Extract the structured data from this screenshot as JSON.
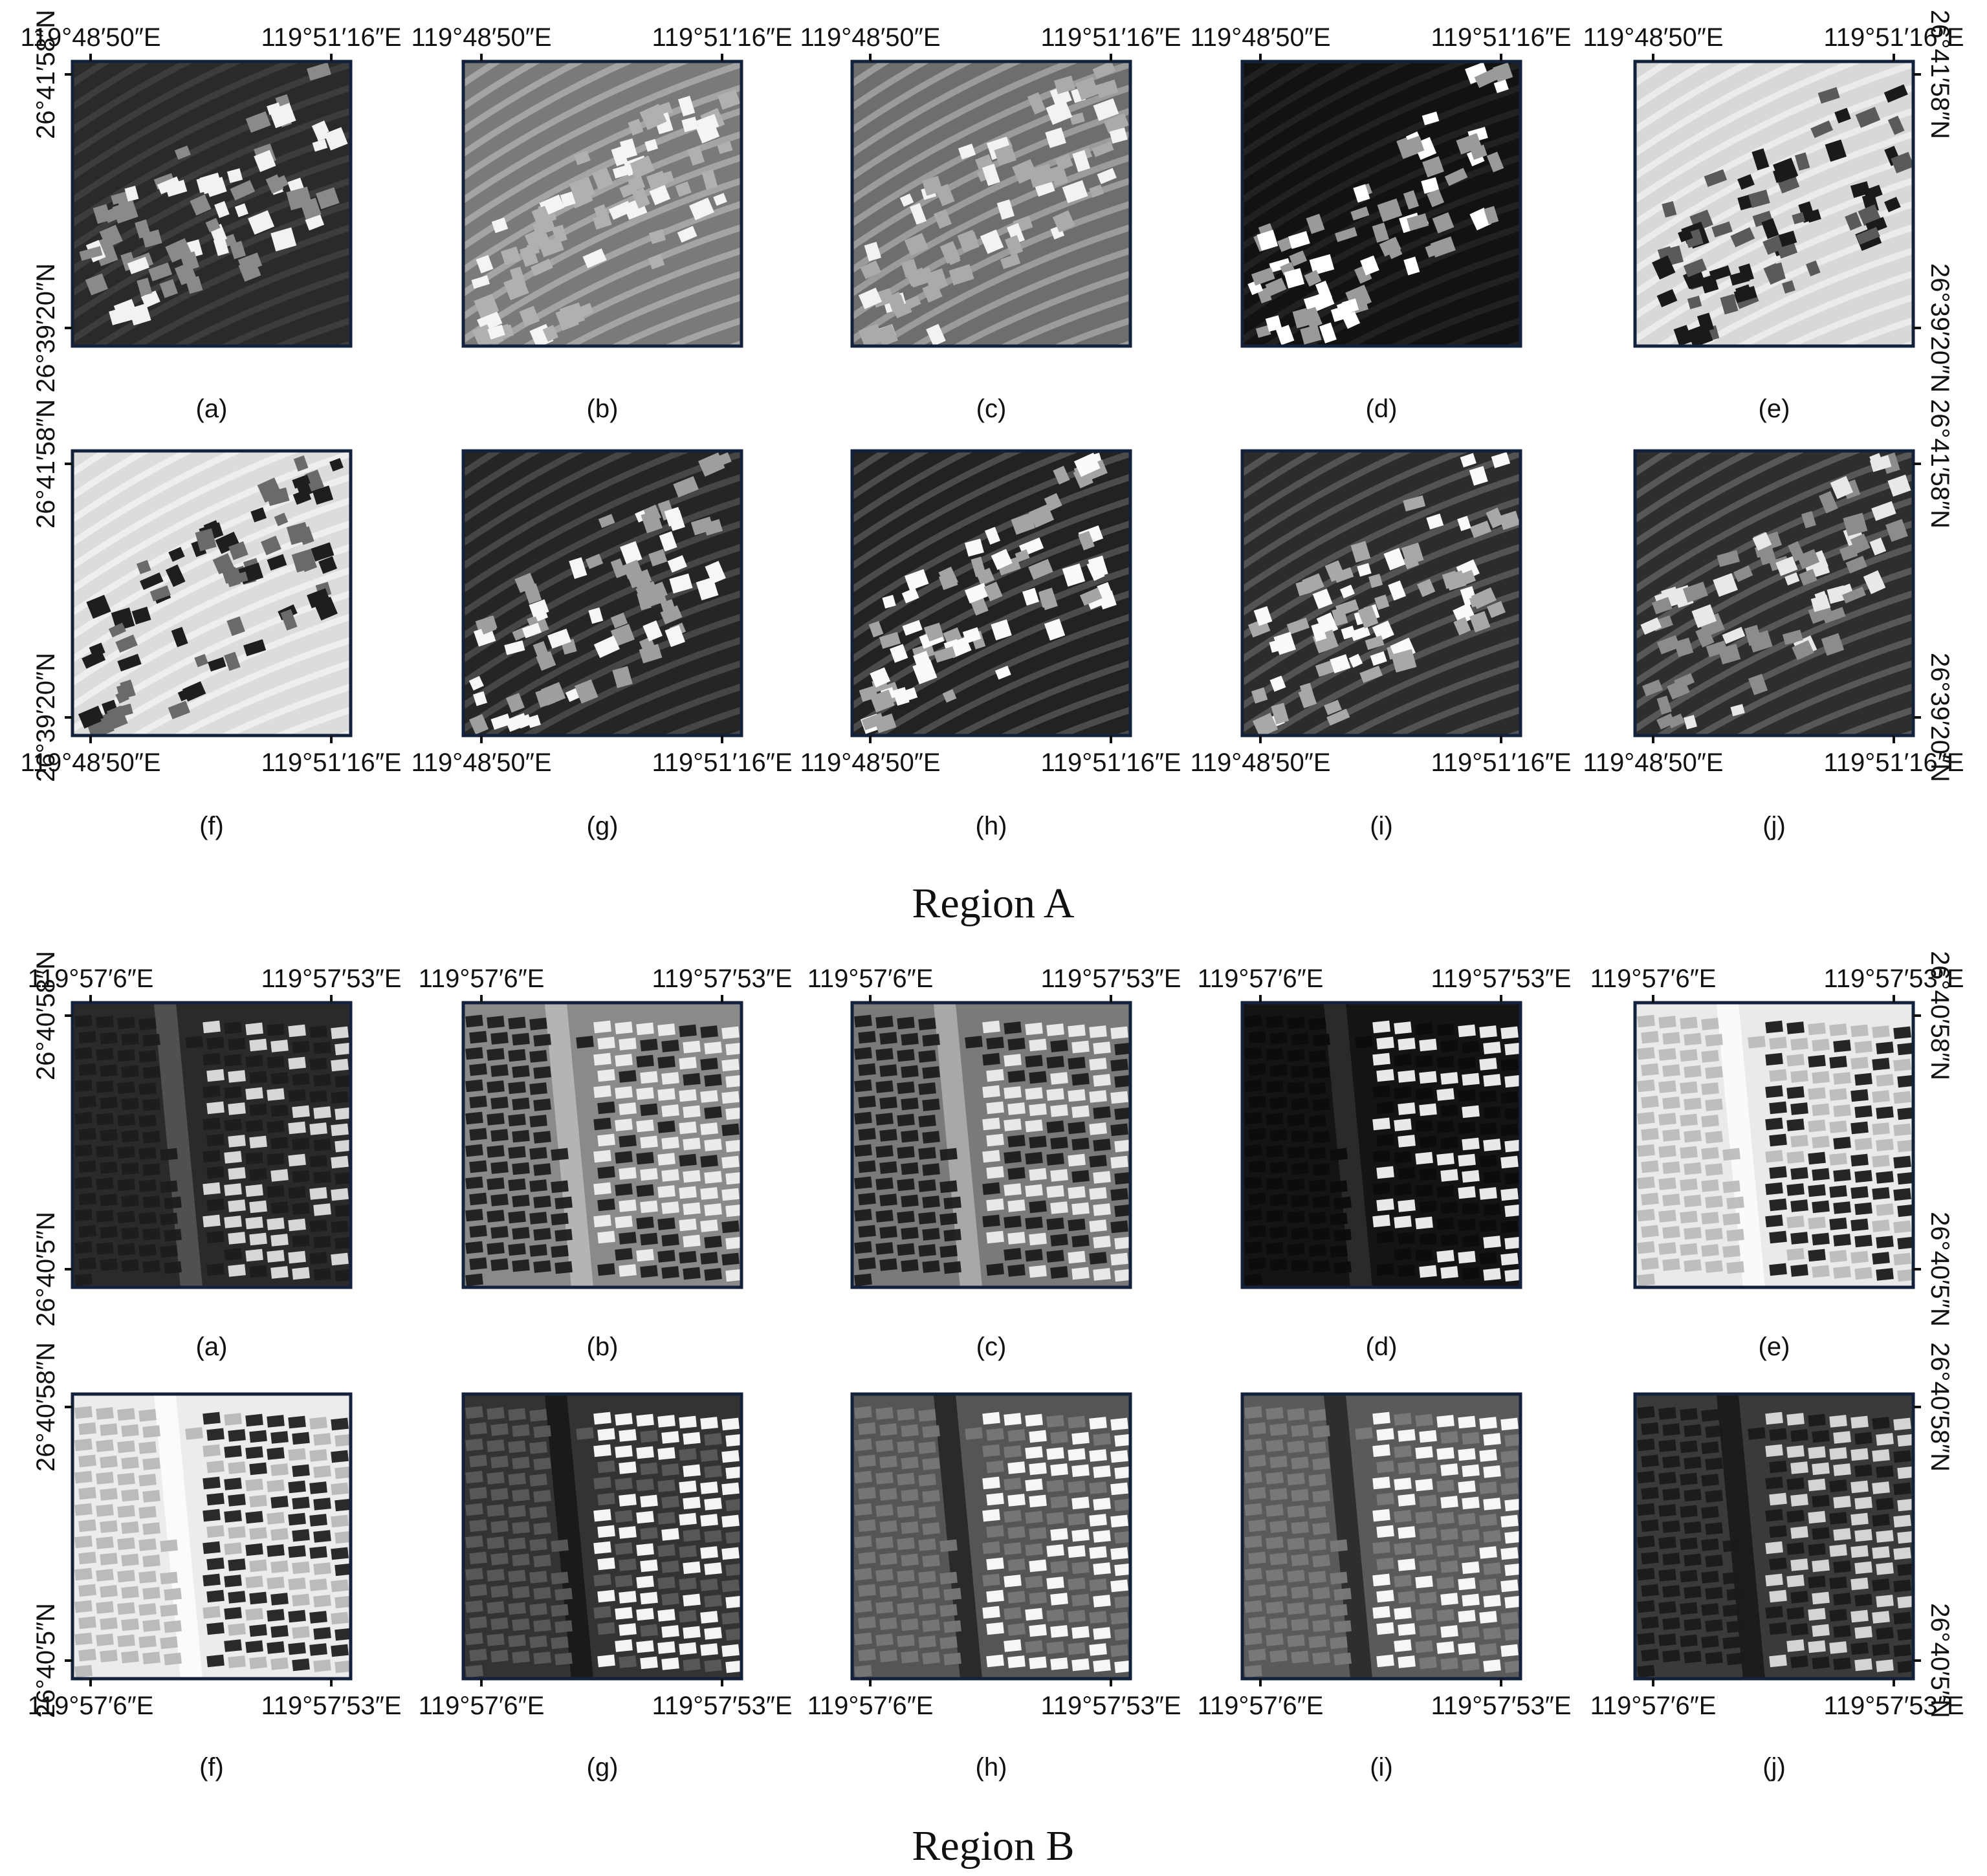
{
  "regions": [
    {
      "title": "Region A",
      "x_ticks": [
        "119°48′50″E",
        "119°51′16″E"
      ],
      "y_ticks": [
        "26°41′58″N",
        "26°39′20″N"
      ],
      "style": "terraces",
      "panels": [
        {
          "label": "(a)",
          "bg": "#2a2a2a",
          "stripe": "#3e3e3e",
          "bld_lo": "#8a8a8a",
          "bld_hi": "#f2f2f2",
          "axes": "top-left"
        },
        {
          "label": "(b)",
          "bg": "#7a7a7a",
          "stripe": "#a8a8a8",
          "bld_lo": "#b0b0b0",
          "bld_hi": "#f4f4f4",
          "axes": "top"
        },
        {
          "label": "(c)",
          "bg": "#6e6e6e",
          "stripe": "#a0a0a0",
          "bld_lo": "#aaaaaa",
          "bld_hi": "#f2f2f2",
          "axes": "top"
        },
        {
          "label": "(d)",
          "bg": "#121212",
          "stripe": "#242424",
          "bld_lo": "#9a9a9a",
          "bld_hi": "#ffffff",
          "axes": "top"
        },
        {
          "label": "(e)",
          "bg": "#d8d8d8",
          "stripe": "#ededed",
          "bld_lo": "#5a5a5a",
          "bld_hi": "#1a1a1a",
          "axes": "top-right"
        },
        {
          "label": "(f)",
          "bg": "#dcdcdc",
          "stripe": "#f0f0f0",
          "bld_lo": "#6a6a6a",
          "bld_hi": "#1e1e1e",
          "axes": "bottom-left"
        },
        {
          "label": "(g)",
          "bg": "#252525",
          "stripe": "#4a4a4a",
          "bld_lo": "#9e9e9e",
          "bld_hi": "#f6f6f6",
          "axes": "bottom"
        },
        {
          "label": "(h)",
          "bg": "#222222",
          "stripe": "#505050",
          "bld_lo": "#a4a4a4",
          "bld_hi": "#fafafa",
          "axes": "bottom"
        },
        {
          "label": "(i)",
          "bg": "#2c2c2c",
          "stripe": "#585858",
          "bld_lo": "#a8a8a8",
          "bld_hi": "#fafafa",
          "axes": "bottom"
        },
        {
          "label": "(j)",
          "bg": "#2e2e2e",
          "stripe": "#5c5c5c",
          "bld_lo": "#8c8c8c",
          "bld_hi": "#e8e8e8",
          "axes": "bottom-right"
        }
      ]
    },
    {
      "title": "Region B",
      "x_ticks": [
        "119°57′6″E",
        "119°57′53″E"
      ],
      "y_ticks": [
        "26°40′58″N",
        "26°40′5″N"
      ],
      "style": "grid",
      "panels": [
        {
          "label": "(a)",
          "bg": "#2a2a2a",
          "stripe": "#505050",
          "bld_lo": "#1c1c1c",
          "bld_hi": "#e0e0e0",
          "axes": "top-left"
        },
        {
          "label": "(b)",
          "bg": "#8a8a8a",
          "stripe": "#b4b4b4",
          "bld_lo": "#1e1e1e",
          "bld_hi": "#f0f0f0",
          "axes": "top"
        },
        {
          "label": "(c)",
          "bg": "#7a7a7a",
          "stripe": "#a8a8a8",
          "bld_lo": "#1c1c1c",
          "bld_hi": "#eeeeee",
          "axes": "top"
        },
        {
          "label": "(d)",
          "bg": "#141414",
          "stripe": "#2a2a2a",
          "bld_lo": "#0c0c0c",
          "bld_hi": "#f4f4f4",
          "axes": "top"
        },
        {
          "label": "(e)",
          "bg": "#eaeaea",
          "stripe": "#fafafa",
          "bld_lo": "#bcbcbc",
          "bld_hi": "#1a1a1a",
          "axes": "top-right"
        },
        {
          "label": "(f)",
          "bg": "#ececec",
          "stripe": "#fbfbfb",
          "bld_lo": "#b8b8b8",
          "bld_hi": "#202020",
          "axes": "bottom-left"
        },
        {
          "label": "(g)",
          "bg": "#333333",
          "stripe": "#1a1a1a",
          "bld_lo": "#5a5a5a",
          "bld_hi": "#ffffff",
          "axes": "bottom"
        },
        {
          "label": "(h)",
          "bg": "#555555",
          "stripe": "#2a2a2a",
          "bld_lo": "#777777",
          "bld_hi": "#ffffff",
          "axes": "bottom"
        },
        {
          "label": "(i)",
          "bg": "#5a5a5a",
          "stripe": "#2e2e2e",
          "bld_lo": "#7a7a7a",
          "bld_hi": "#ffffff",
          "axes": "bottom"
        },
        {
          "label": "(j)",
          "bg": "#3a3a3a",
          "stripe": "#1c1c1c",
          "bld_lo": "#1a1a1a",
          "bld_hi": "#dcdcdc",
          "axes": "bottom-right"
        }
      ]
    }
  ]
}
